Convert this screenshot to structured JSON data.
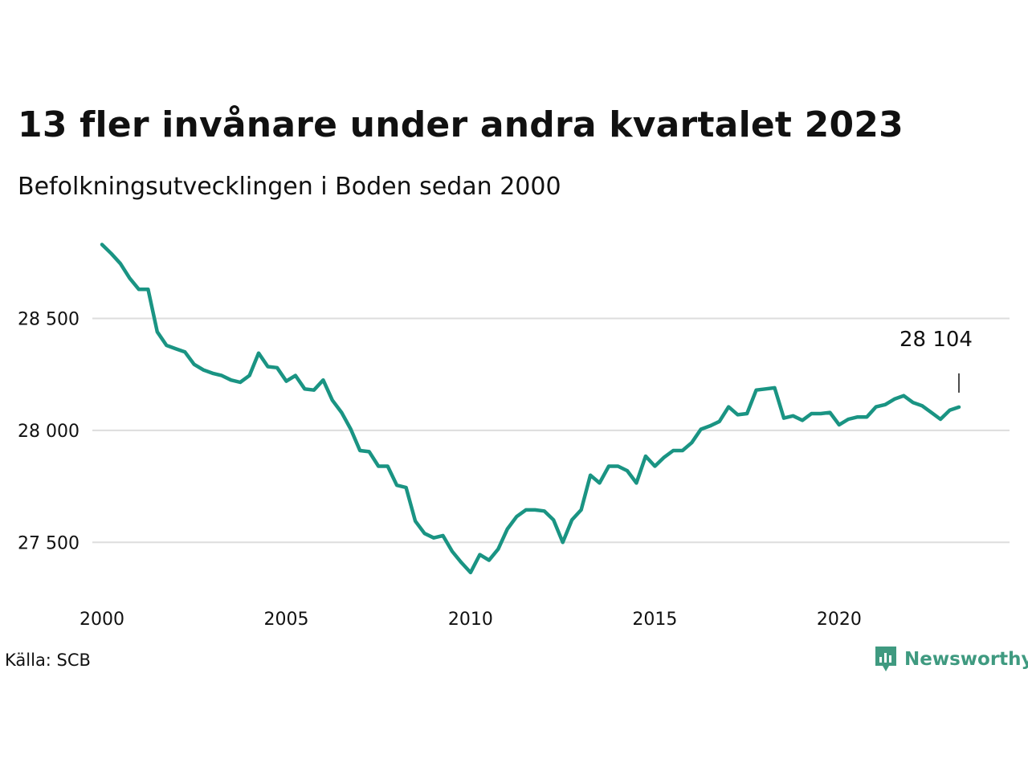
{
  "title": "13 fler invånare under andra kvartalet 2023",
  "subtitle": "Befolkningsutvecklingen i Boden sedan 2000",
  "source": "Källa: SCB",
  "brand": {
    "name": "Newsworthy",
    "logo_icon": "newsworthy-chart-bubble-icon",
    "color": "#3f9a80"
  },
  "colors": {
    "line": "#1a9483",
    "grid": "#dddddd",
    "text": "#111111"
  },
  "chart_data": {
    "type": "line",
    "title": "13 fler invånare under andra kvartalet 2023",
    "subtitle": "Befolkningsutvecklingen i Boden sedan 2000",
    "xlabel": "",
    "ylabel": "",
    "xlim": [
      2000,
      2024.1
    ],
    "ylim": [
      27250,
      28900
    ],
    "x_ticks": [
      2000,
      2005,
      2010,
      2015,
      2020
    ],
    "x_tick_labels": [
      "2000",
      "2005",
      "2010",
      "2015",
      "2020"
    ],
    "y_ticks": [
      27500,
      28000,
      28500
    ],
    "y_tick_labels": [
      "27 500",
      "28 000",
      "28 500"
    ],
    "grid": "horizontal",
    "last_value_label": "28 104",
    "series": [
      {
        "x": [
          2000.0,
          2000.25,
          2000.5,
          2000.75,
          2001.0,
          2001.25,
          2001.5,
          2001.75,
          2002.0,
          2002.25,
          2002.5,
          2002.75,
          2003.0,
          2003.25,
          2003.5,
          2003.75,
          2004.0,
          2004.25,
          2004.5,
          2004.75,
          2005.0,
          2005.25,
          2005.5,
          2005.75,
          2006.0,
          2006.25,
          2006.5,
          2006.75,
          2007.0,
          2007.25,
          2007.5,
          2007.75,
          2008.0,
          2008.25,
          2008.5,
          2008.75,
          2009.0,
          2009.25,
          2009.5,
          2009.75,
          2010.0,
          2010.25,
          2010.5,
          2010.75,
          2011.0,
          2011.25,
          2011.5,
          2011.75,
          2012.0,
          2012.25,
          2012.5,
          2012.75,
          2013.0,
          2013.25,
          2013.5,
          2013.75,
          2014.0,
          2014.25,
          2014.5,
          2014.75,
          2015.0,
          2015.25,
          2015.5,
          2015.75,
          2016.0,
          2016.25,
          2016.5,
          2016.75,
          2017.0,
          2017.25,
          2017.5,
          2017.75,
          2018.0,
          2018.25,
          2018.5,
          2018.75,
          2019.0,
          2019.25,
          2019.5,
          2019.75,
          2020.0,
          2020.25,
          2020.5,
          2020.75,
          2021.0,
          2021.25,
          2021.5,
          2021.75,
          2022.0,
          2022.25,
          2022.5,
          2022.75,
          2023.0,
          2023.25
        ],
        "y": [
          28830,
          28790,
          28745,
          28680,
          28630,
          28630,
          28440,
          28380,
          28365,
          28350,
          28295,
          28270,
          28255,
          28245,
          28225,
          28215,
          28245,
          28345,
          28285,
          28280,
          28220,
          28245,
          28185,
          28180,
          28225,
          28135,
          28080,
          28005,
          27910,
          27905,
          27840,
          27840,
          27755,
          27745,
          27595,
          27540,
          27520,
          27530,
          27460,
          27410,
          27365,
          27445,
          27420,
          27470,
          27560,
          27615,
          27645,
          27645,
          27640,
          27600,
          27500,
          27600,
          27645,
          27800,
          27765,
          27840,
          27840,
          27820,
          27765,
          27885,
          27840,
          27880,
          27910,
          27910,
          27945,
          28005,
          28020,
          28040,
          28105,
          28070,
          28075,
          28180,
          28185,
          28190,
          28055,
          28065,
          28045,
          28075,
          28075,
          28080,
          28025,
          28050,
          28060,
          28060,
          28105,
          28115,
          28140,
          28155,
          28125,
          28110,
          28080,
          28050,
          28090,
          28104
        ]
      }
    ]
  }
}
